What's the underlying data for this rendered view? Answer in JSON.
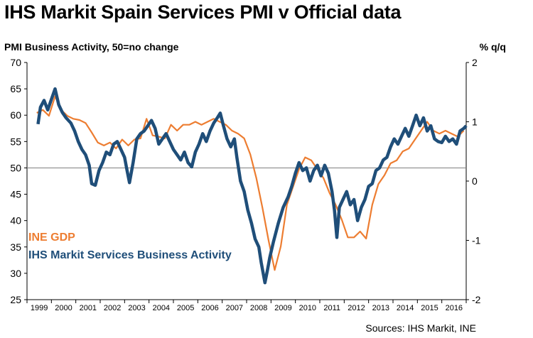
{
  "title": "IHS Markit Spain Services PMI v Official data",
  "left_axis_label": "PMI Business Activity, 50=no change",
  "right_axis_label": "% q/q",
  "source": "Sources: IHS Markit, INE",
  "colors": {
    "pmi": "#1f4e79",
    "gdp": "#ed7d31",
    "axis": "#000000",
    "ref": "#7f7f7f"
  },
  "chart_data": {
    "type": "line",
    "title": "IHS Markit Spain Services PMI v Official data",
    "left_axis": {
      "label": "PMI Business Activity, 50=no change",
      "range": [
        25,
        70
      ],
      "ticks": [
        70,
        65,
        60,
        55,
        50,
        45,
        40,
        35,
        30,
        25
      ]
    },
    "right_axis": {
      "label": "% q/q",
      "range": [
        -2,
        2
      ],
      "ticks": [
        2,
        1,
        0,
        -1,
        -2
      ]
    },
    "x_axis": {
      "range": [
        1999.0,
        2017.0
      ],
      "tick_labels": [
        "1999",
        "2000",
        "2001",
        "2002",
        "2003",
        "2004",
        "2005",
        "2006",
        "2007",
        "2008",
        "2009",
        "2010",
        "2011",
        "2012",
        "2013",
        "2014",
        "2015",
        "2016"
      ]
    },
    "reference_line": {
      "axis": "left",
      "value": 50
    },
    "series": [
      {
        "name": "IHS Markit Services Business Activity",
        "axis": "left",
        "points": [
          [
            1999.45,
            58.3
          ],
          [
            1999.55,
            61.5
          ],
          [
            1999.7,
            62.8
          ],
          [
            1999.85,
            61.0
          ],
          [
            2000.0,
            63.0
          ],
          [
            2000.15,
            65.0
          ],
          [
            2000.3,
            62.0
          ],
          [
            2000.45,
            60.5
          ],
          [
            2000.6,
            59.5
          ],
          [
            2000.8,
            58.5
          ],
          [
            2000.95,
            57.0
          ],
          [
            2001.1,
            55.0
          ],
          [
            2001.25,
            53.5
          ],
          [
            2001.4,
            52.5
          ],
          [
            2001.55,
            50.5
          ],
          [
            2001.65,
            47.0
          ],
          [
            2001.8,
            46.7
          ],
          [
            2001.95,
            49.5
          ],
          [
            2002.1,
            51.0
          ],
          [
            2002.25,
            53.0
          ],
          [
            2002.4,
            52.5
          ],
          [
            2002.55,
            54.5
          ],
          [
            2002.7,
            55.0
          ],
          [
            2002.85,
            53.5
          ],
          [
            2003.0,
            52.0
          ],
          [
            2003.1,
            49.5
          ],
          [
            2003.2,
            47.2
          ],
          [
            2003.35,
            51.0
          ],
          [
            2003.5,
            55.5
          ],
          [
            2003.65,
            56.5
          ],
          [
            2003.8,
            57.0
          ],
          [
            2003.95,
            58.0
          ],
          [
            2004.1,
            59.0
          ],
          [
            2004.25,
            57.5
          ],
          [
            2004.4,
            54.5
          ],
          [
            2004.55,
            55.5
          ],
          [
            2004.7,
            56.5
          ],
          [
            2004.85,
            55.0
          ],
          [
            2005.0,
            53.5
          ],
          [
            2005.15,
            52.5
          ],
          [
            2005.3,
            51.5
          ],
          [
            2005.45,
            53.0
          ],
          [
            2005.6,
            51.0
          ],
          [
            2005.75,
            50.2
          ],
          [
            2005.9,
            53.0
          ],
          [
            2006.05,
            54.5
          ],
          [
            2006.2,
            56.5
          ],
          [
            2006.35,
            55.0
          ],
          [
            2006.5,
            57.0
          ],
          [
            2006.65,
            58.5
          ],
          [
            2006.8,
            59.5
          ],
          [
            2006.92,
            60.4
          ],
          [
            2007.05,
            58.0
          ],
          [
            2007.2,
            55.5
          ],
          [
            2007.35,
            54.0
          ],
          [
            2007.5,
            55.5
          ],
          [
            2007.6,
            52.0
          ],
          [
            2007.75,
            47.5
          ],
          [
            2007.9,
            45.5
          ],
          [
            2008.05,
            42.0
          ],
          [
            2008.2,
            39.5
          ],
          [
            2008.35,
            36.5
          ],
          [
            2008.5,
            35.0
          ],
          [
            2008.6,
            32.0
          ],
          [
            2008.75,
            28.2
          ],
          [
            2008.85,
            30.5
          ],
          [
            2008.95,
            33.0
          ],
          [
            2009.1,
            36.0
          ],
          [
            2009.3,
            39.5
          ],
          [
            2009.5,
            42.5
          ],
          [
            2009.7,
            44.5
          ],
          [
            2009.85,
            46.5
          ],
          [
            2010.0,
            49.0
          ],
          [
            2010.15,
            51.0
          ],
          [
            2010.3,
            49.5
          ],
          [
            2010.45,
            50.0
          ],
          [
            2010.6,
            47.5
          ],
          [
            2010.75,
            49.5
          ],
          [
            2010.9,
            50.5
          ],
          [
            2011.05,
            48.5
          ],
          [
            2011.2,
            50.5
          ],
          [
            2011.35,
            49.0
          ],
          [
            2011.5,
            45.5
          ],
          [
            2011.6,
            42.0
          ],
          [
            2011.7,
            36.8
          ],
          [
            2011.8,
            42.5
          ],
          [
            2011.95,
            44.0
          ],
          [
            2012.1,
            45.5
          ],
          [
            2012.25,
            43.0
          ],
          [
            2012.4,
            44.0
          ],
          [
            2012.55,
            40.0
          ],
          [
            2012.7,
            42.5
          ],
          [
            2012.85,
            44.0
          ],
          [
            2013.0,
            46.5
          ],
          [
            2013.15,
            47.0
          ],
          [
            2013.3,
            49.5
          ],
          [
            2013.45,
            50.0
          ],
          [
            2013.6,
            51.5
          ],
          [
            2013.75,
            52.0
          ],
          [
            2013.9,
            54.0
          ],
          [
            2014.05,
            55.5
          ],
          [
            2014.2,
            54.5
          ],
          [
            2014.35,
            56.0
          ],
          [
            2014.5,
            57.5
          ],
          [
            2014.65,
            56.0
          ],
          [
            2014.8,
            58.0
          ],
          [
            2014.95,
            60.0
          ],
          [
            2015.1,
            58.0
          ],
          [
            2015.25,
            59.5
          ],
          [
            2015.4,
            57.0
          ],
          [
            2015.55,
            58.0
          ],
          [
            2015.7,
            55.5
          ],
          [
            2015.85,
            55.0
          ],
          [
            2016.0,
            54.8
          ],
          [
            2016.15,
            56.0
          ],
          [
            2016.3,
            55.0
          ],
          [
            2016.45,
            55.5
          ],
          [
            2016.6,
            54.5
          ],
          [
            2016.75,
            57.0
          ],
          [
            2016.9,
            57.5
          ],
          [
            2017.0,
            58.0
          ]
        ]
      },
      {
        "name": "INE GDP",
        "axis": "right",
        "points": [
          [
            1999.4,
            1.15
          ],
          [
            1999.65,
            1.2
          ],
          [
            1999.9,
            1.1
          ],
          [
            2000.15,
            1.43
          ],
          [
            2000.4,
            1.2
          ],
          [
            2000.65,
            1.1
          ],
          [
            2000.9,
            1.05
          ],
          [
            2001.15,
            1.03
          ],
          [
            2001.4,
            0.98
          ],
          [
            2001.65,
            0.82
          ],
          [
            2001.9,
            0.65
          ],
          [
            2002.15,
            0.6
          ],
          [
            2002.4,
            0.65
          ],
          [
            2002.65,
            0.55
          ],
          [
            2002.9,
            0.7
          ],
          [
            2003.15,
            0.6
          ],
          [
            2003.4,
            0.7
          ],
          [
            2003.65,
            0.72
          ],
          [
            2003.9,
            1.05
          ],
          [
            2004.15,
            0.77
          ],
          [
            2004.4,
            0.75
          ],
          [
            2004.65,
            0.72
          ],
          [
            2004.9,
            0.95
          ],
          [
            2005.15,
            0.85
          ],
          [
            2005.4,
            0.95
          ],
          [
            2005.65,
            0.95
          ],
          [
            2005.9,
            1.0
          ],
          [
            2006.15,
            0.95
          ],
          [
            2006.4,
            1.0
          ],
          [
            2006.65,
            1.05
          ],
          [
            2006.9,
            1.0
          ],
          [
            2007.15,
            0.95
          ],
          [
            2007.4,
            0.85
          ],
          [
            2007.65,
            0.8
          ],
          [
            2007.9,
            0.72
          ],
          [
            2008.15,
            0.45
          ],
          [
            2008.4,
            0.05
          ],
          [
            2008.65,
            -0.45
          ],
          [
            2008.9,
            -1.0
          ],
          [
            2009.15,
            -1.5
          ],
          [
            2009.4,
            -1.1
          ],
          [
            2009.65,
            -0.4
          ],
          [
            2009.9,
            -0.1
          ],
          [
            2010.15,
            0.2
          ],
          [
            2010.4,
            0.4
          ],
          [
            2010.65,
            0.35
          ],
          [
            2010.9,
            0.2
          ],
          [
            2011.15,
            0.05
          ],
          [
            2011.4,
            -0.2
          ],
          [
            2011.65,
            -0.4
          ],
          [
            2011.9,
            -0.65
          ],
          [
            2012.15,
            -0.95
          ],
          [
            2012.4,
            -0.95
          ],
          [
            2012.65,
            -0.85
          ],
          [
            2012.9,
            -0.97
          ],
          [
            2013.15,
            -0.4
          ],
          [
            2013.4,
            -0.05
          ],
          [
            2013.65,
            0.1
          ],
          [
            2013.9,
            0.3
          ],
          [
            2014.15,
            0.35
          ],
          [
            2014.4,
            0.5
          ],
          [
            2014.65,
            0.55
          ],
          [
            2014.9,
            0.7
          ],
          [
            2015.15,
            0.85
          ],
          [
            2015.4,
            1.0
          ],
          [
            2015.65,
            0.85
          ],
          [
            2015.9,
            0.8
          ],
          [
            2016.15,
            0.85
          ],
          [
            2016.4,
            0.8
          ],
          [
            2016.65,
            0.75
          ],
          [
            2016.9,
            0.85
          ]
        ]
      }
    ],
    "annotations": [
      {
        "text": "INE GDP",
        "color": "#ed7d31"
      },
      {
        "text": "IHS Markit Services Business Activity",
        "color": "#1f4e79"
      }
    ]
  }
}
